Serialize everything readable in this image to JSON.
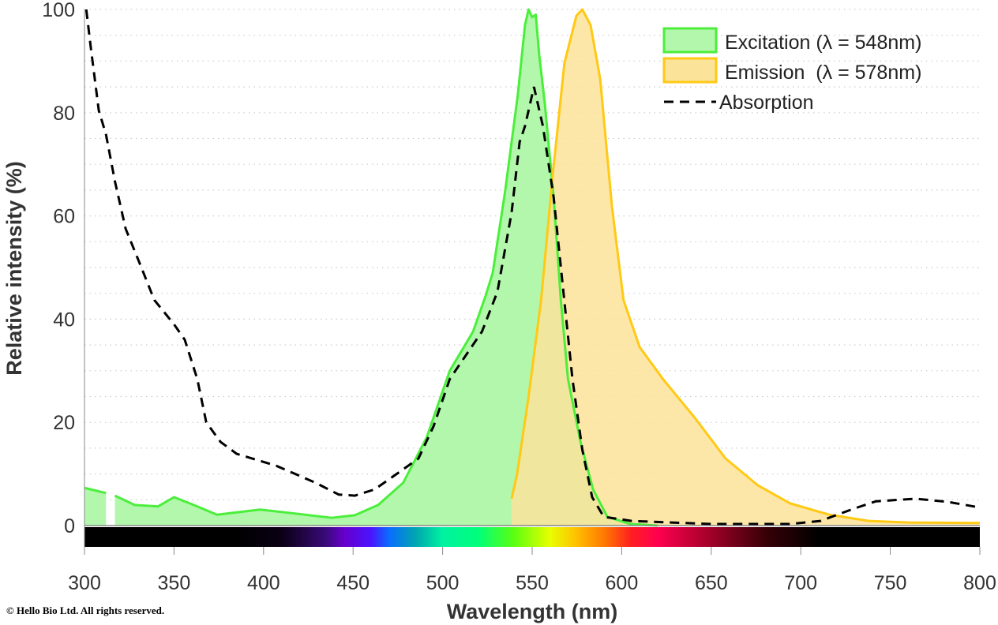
{
  "chart_data": {
    "type": "area",
    "xlabel": "Wavelength (nm)",
    "ylabel": "Relative intensity (%)",
    "xlim": [
      300,
      800
    ],
    "ylim": [
      0,
      100
    ],
    "xticks": [
      300,
      350,
      400,
      450,
      500,
      550,
      600,
      650,
      700,
      750,
      800
    ],
    "yticks": [
      0,
      20,
      40,
      60,
      80,
      100
    ],
    "grid": "horizontal dotted every 5",
    "legend_position": "top-right",
    "spectrum_bar": true,
    "series": [
      {
        "name": "Excitation (λ = 548nm)",
        "style": "filled",
        "color": "#4cee3c",
        "fill": "#b3f7ad",
        "x": [
          300,
          312,
          313,
          316,
          317,
          328,
          341,
          350,
          361,
          374,
          398,
          416,
          438,
          451,
          464,
          478,
          491,
          504,
          517,
          524,
          528,
          535,
          542,
          546,
          548,
          550,
          552,
          554,
          557,
          562,
          566,
          570,
          577,
          584,
          592,
          605,
          620
        ],
        "y": [
          7.3,
          6.3,
          null,
          null,
          5.8,
          4,
          3.7,
          5.5,
          4,
          2.1,
          3.1,
          2.4,
          1.5,
          2,
          4,
          8.3,
          17,
          30,
          37.6,
          44.5,
          49,
          65,
          83.5,
          97,
          100,
          98.5,
          99,
          91,
          82,
          63.6,
          43.7,
          28.4,
          16.2,
          7,
          1.7,
          0.3,
          0
        ]
      },
      {
        "name": "Emission  (λ = 578nm)",
        "style": "filled",
        "color": "#ffc914",
        "fill": "#fbe39a",
        "x": [
          538.5,
          541.6,
          548,
          555,
          561.5,
          568,
          574.7,
          578,
          582.6,
          588,
          594.5,
          601,
          610,
          623,
          641,
          658,
          676,
          694,
          716,
          738,
          760,
          800
        ],
        "y": [
          5.2,
          10,
          25,
          43.7,
          68,
          89.6,
          98.8,
          100,
          97,
          86.5,
          62,
          43.7,
          34.6,
          28.4,
          20.8,
          13,
          7.8,
          4.3,
          2.1,
          0.9,
          0.6,
          0.5
        ]
      },
      {
        "name": "Absorption",
        "style": "dashed",
        "color": "#000000",
        "x": [
          301,
          303.5,
          308,
          312,
          317,
          323,
          332,
          339,
          350,
          356,
          363,
          368,
          376,
          385,
          407,
          429,
          442,
          451,
          462,
          478,
          486.5,
          495,
          504,
          513,
          522,
          530.6,
          538.5,
          543,
          546,
          551,
          556,
          562,
          567,
          572.5,
          578,
          583.5,
          590,
          605.5,
          627.6,
          650,
          694,
          711,
          729,
          742,
          764,
          782,
          800
        ],
        "y": [
          100,
          92.7,
          80.4,
          75.8,
          66.7,
          57.5,
          49.8,
          43.7,
          39,
          36,
          28.4,
          20,
          16.2,
          13.9,
          11.6,
          8.3,
          6,
          5.8,
          7,
          10.9,
          13,
          19.3,
          28.4,
          33,
          37.6,
          45.3,
          60.6,
          74.3,
          77.4,
          85,
          77.4,
          63.6,
          46.8,
          28.4,
          14.7,
          5.5,
          1.7,
          0.9,
          0.6,
          0.3,
          0.3,
          0.9,
          3.2,
          4.7,
          5.2,
          4.6,
          3.5
        ]
      }
    ]
  },
  "copyright": "© Hello Bio Ltd. All rights reserved."
}
